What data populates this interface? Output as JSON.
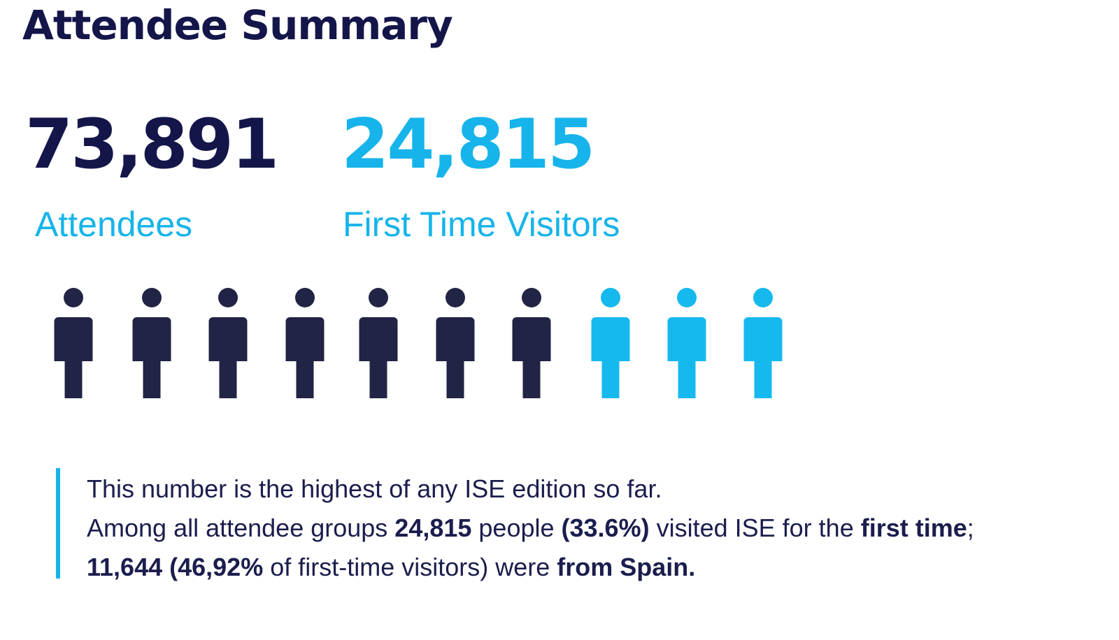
{
  "header": {
    "title": "Attendee Summary"
  },
  "stats": [
    {
      "value": "73,891",
      "label": "Attendees"
    },
    {
      "value": "24,815",
      "label": "First Time Visitors"
    }
  ],
  "note": {
    "line1": "This number is the highest of any ISE edition so far.",
    "segments": [
      {
        "text": "Among all attendee groups ",
        "bold": false
      },
      {
        "text": "24,815",
        "bold": true
      },
      {
        "text": " people ",
        "bold": false
      },
      {
        "text": "(33.6%)",
        "bold": true
      },
      {
        "text": " visited ISE for the ",
        "bold": false
      },
      {
        "text": "first time",
        "bold": true
      },
      {
        "text": "; ",
        "bold": false
      },
      {
        "text": "11,644 (46,92%",
        "bold": true
      },
      {
        "text": " of first-time visitors) were ",
        "bold": false
      },
      {
        "text": "from Spain.",
        "bold": true
      }
    ]
  }
}
